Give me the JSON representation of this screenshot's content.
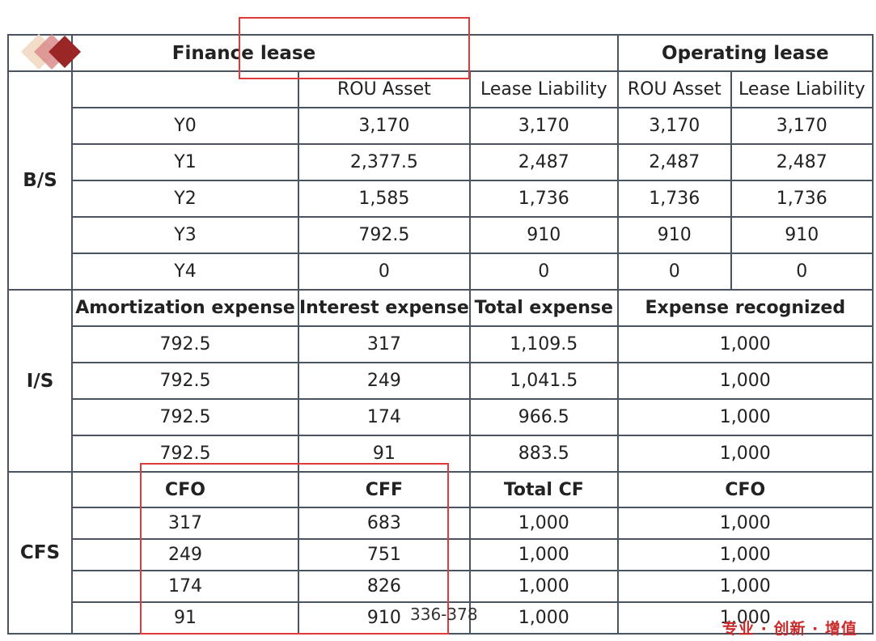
{
  "header": {
    "finance_lease": "Finance lease",
    "operating_lease": "Operating lease",
    "rou_asset": "ROU Asset",
    "lease_liability": "Lease Liability"
  },
  "bs": {
    "label": "B/S",
    "rows": [
      {
        "year": "Y0",
        "fl_rou": "3,170",
        "fl_liab": "3,170",
        "ol_rou": "3,170",
        "ol_liab": "3,170"
      },
      {
        "year": "Y1",
        "fl_rou": "2,377.5",
        "fl_liab": "2,487",
        "ol_rou": "2,487",
        "ol_liab": "2,487"
      },
      {
        "year": "Y2",
        "fl_rou": "1,585",
        "fl_liab": "1,736",
        "ol_rou": "1,736",
        "ol_liab": "1,736"
      },
      {
        "year": "Y3",
        "fl_rou": "792.5",
        "fl_liab": "910",
        "ol_rou": "910",
        "ol_liab": "910"
      },
      {
        "year": "Y4",
        "fl_rou": "0",
        "fl_liab": "0",
        "ol_rou": "0",
        "ol_liab": "0"
      }
    ]
  },
  "is": {
    "label": "I/S",
    "headers": {
      "amortization": "Amortization expense",
      "interest": "Interest expense",
      "total": "Total expense",
      "recognized": "Expense recognized"
    },
    "rows": [
      {
        "amort": "792.5",
        "interest": "317",
        "total": "1,109.5",
        "recognized": "1,000"
      },
      {
        "amort": "792.5",
        "interest": "249",
        "total": "1,041.5",
        "recognized": "1,000"
      },
      {
        "amort": "792.5",
        "interest": "174",
        "total": "966.5",
        "recognized": "1,000"
      },
      {
        "amort": "792.5",
        "interest": "91",
        "total": "883.5",
        "recognized": "1,000"
      }
    ]
  },
  "cfs": {
    "label": "CFS",
    "headers": {
      "cfo": "CFO",
      "cff": "CFF",
      "total_cf": "Total CF",
      "ol_cfo": "CFO"
    },
    "rows": [
      {
        "cfo": "317",
        "cff": "683",
        "total_cf": "1,000",
        "ol_cfo": "1,000"
      },
      {
        "cfo": "249",
        "cff": "751",
        "total_cf": "1,000",
        "ol_cfo": "1,000"
      },
      {
        "cfo": "174",
        "cff": "826",
        "total_cf": "1,000",
        "ol_cfo": "1,000"
      },
      {
        "cfo": "91",
        "cff": "910",
        "total_cf": "1,000",
        "ol_cfo": "1,000"
      }
    ]
  },
  "footer": {
    "page_ref": "336-378",
    "brand": "专业 · 创新 · 增值"
  },
  "colors": {
    "border": "#4a5360",
    "highlight": "#e03a3a",
    "brand_red": "#c92a2a"
  },
  "icons": {
    "logo": "diamond-logo-icon"
  }
}
